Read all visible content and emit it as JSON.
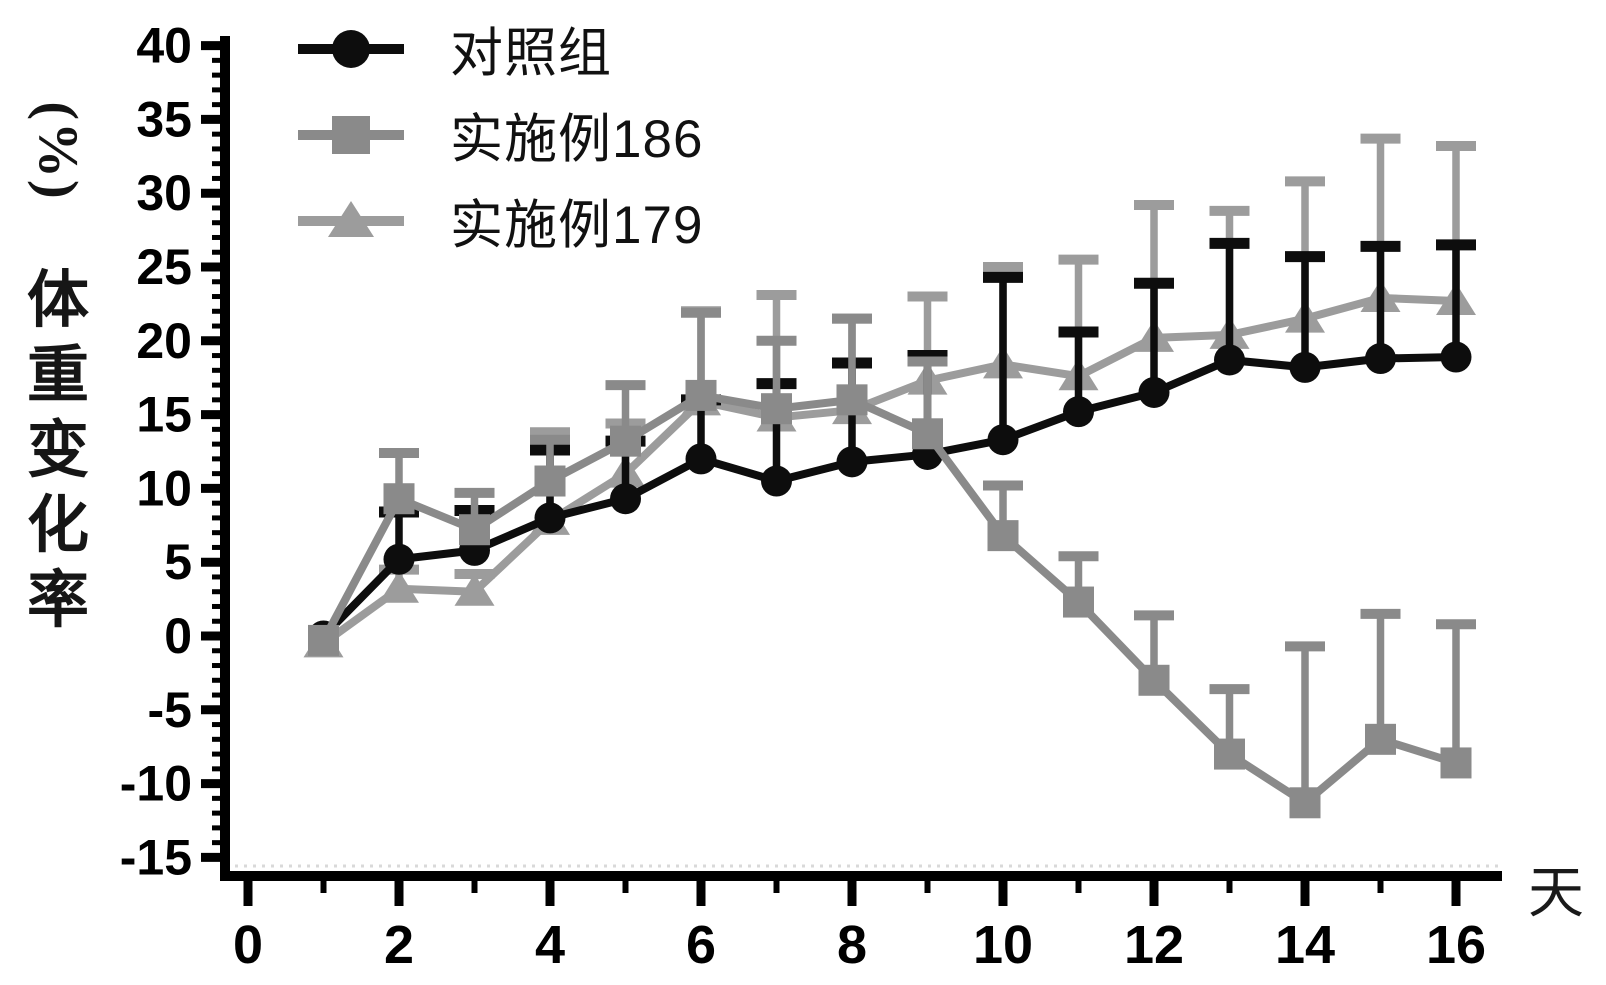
{
  "figure": {
    "background": "#ffffff",
    "axis_color": "#000000",
    "x_axis": {
      "label": "天",
      "ticks": [
        0,
        2,
        4,
        6,
        8,
        10,
        12,
        14,
        16
      ],
      "minor_ticks": [
        1,
        3,
        5,
        7,
        9,
        11,
        13,
        15
      ],
      "range": [
        0,
        16.6
      ]
    },
    "y_axis": {
      "unit": "(%)",
      "label_chars": [
        "体",
        "重",
        "变",
        "化",
        "率"
      ],
      "ticks": [
        40,
        35,
        30,
        25,
        20,
        15,
        10,
        5,
        0,
        -5,
        -10,
        -15
      ],
      "minor_step": 1,
      "range": [
        -15,
        40
      ]
    }
  },
  "legend": {
    "items": [
      {
        "label": "对照组",
        "marker": "circle",
        "color": "#0d0d0d"
      },
      {
        "label": "实施例186",
        "marker": "square",
        "color": "#8a8a8a"
      },
      {
        "label": "实施例179",
        "marker": "triangle",
        "color": "#9c9c9c"
      }
    ]
  },
  "chart_data": {
    "type": "line",
    "title": "",
    "xlabel": "天",
    "ylabel": "体重变化率(%)",
    "xlim": [
      0,
      16.6
    ],
    "ylim": [
      -15,
      40
    ],
    "x": [
      1,
      2,
      3,
      4,
      5,
      6,
      7,
      8,
      9,
      10,
      11,
      12,
      13,
      14,
      15,
      16
    ],
    "error_bars": "one-sided upward, cap at top",
    "series": [
      {
        "name": "对照组",
        "marker": "circle",
        "color": "#0d0d0d",
        "values": [
          0,
          5.2,
          5.8,
          8.0,
          9.3,
          12.0,
          10.5,
          11.8,
          12.3,
          13.3,
          15.2,
          16.5,
          18.7,
          18.2,
          18.8,
          18.9
        ],
        "err_top": [
          0,
          8.4,
          8.5,
          12.6,
          13.2,
          16.0,
          17.1,
          18.5,
          19.0,
          24.3,
          20.6,
          23.9,
          26.6,
          25.7,
          26.4,
          26.5
        ]
      },
      {
        "name": "实施例186",
        "marker": "square",
        "color": "#8a8a8a",
        "values": [
          -0.3,
          9.3,
          7.2,
          10.5,
          13.2,
          16.3,
          15.4,
          16.0,
          13.7,
          6.8,
          2.3,
          -3.0,
          -8.0,
          -11.3,
          -7.0,
          -8.6
        ],
        "err_top": [
          -0.3,
          12.4,
          9.7,
          13.3,
          17.0,
          21.9,
          20.0,
          21.5,
          18.6,
          10.2,
          5.4,
          1.4,
          -3.6,
          -0.7,
          1.5,
          0.8
        ]
      },
      {
        "name": "实施例179",
        "marker": "triangle",
        "color": "#9c9c9c",
        "values": [
          -0.5,
          3.2,
          3.0,
          7.8,
          11.0,
          15.9,
          14.8,
          15.3,
          17.3,
          18.4,
          17.6,
          20.2,
          20.4,
          21.5,
          22.9,
          22.7
        ],
        "err_top": [
          -0.5,
          4.5,
          4.2,
          13.8,
          14.4,
          22.0,
          23.1,
          21.5,
          23.0,
          25.0,
          25.5,
          29.2,
          28.8,
          30.8,
          33.7,
          33.2
        ]
      }
    ]
  }
}
